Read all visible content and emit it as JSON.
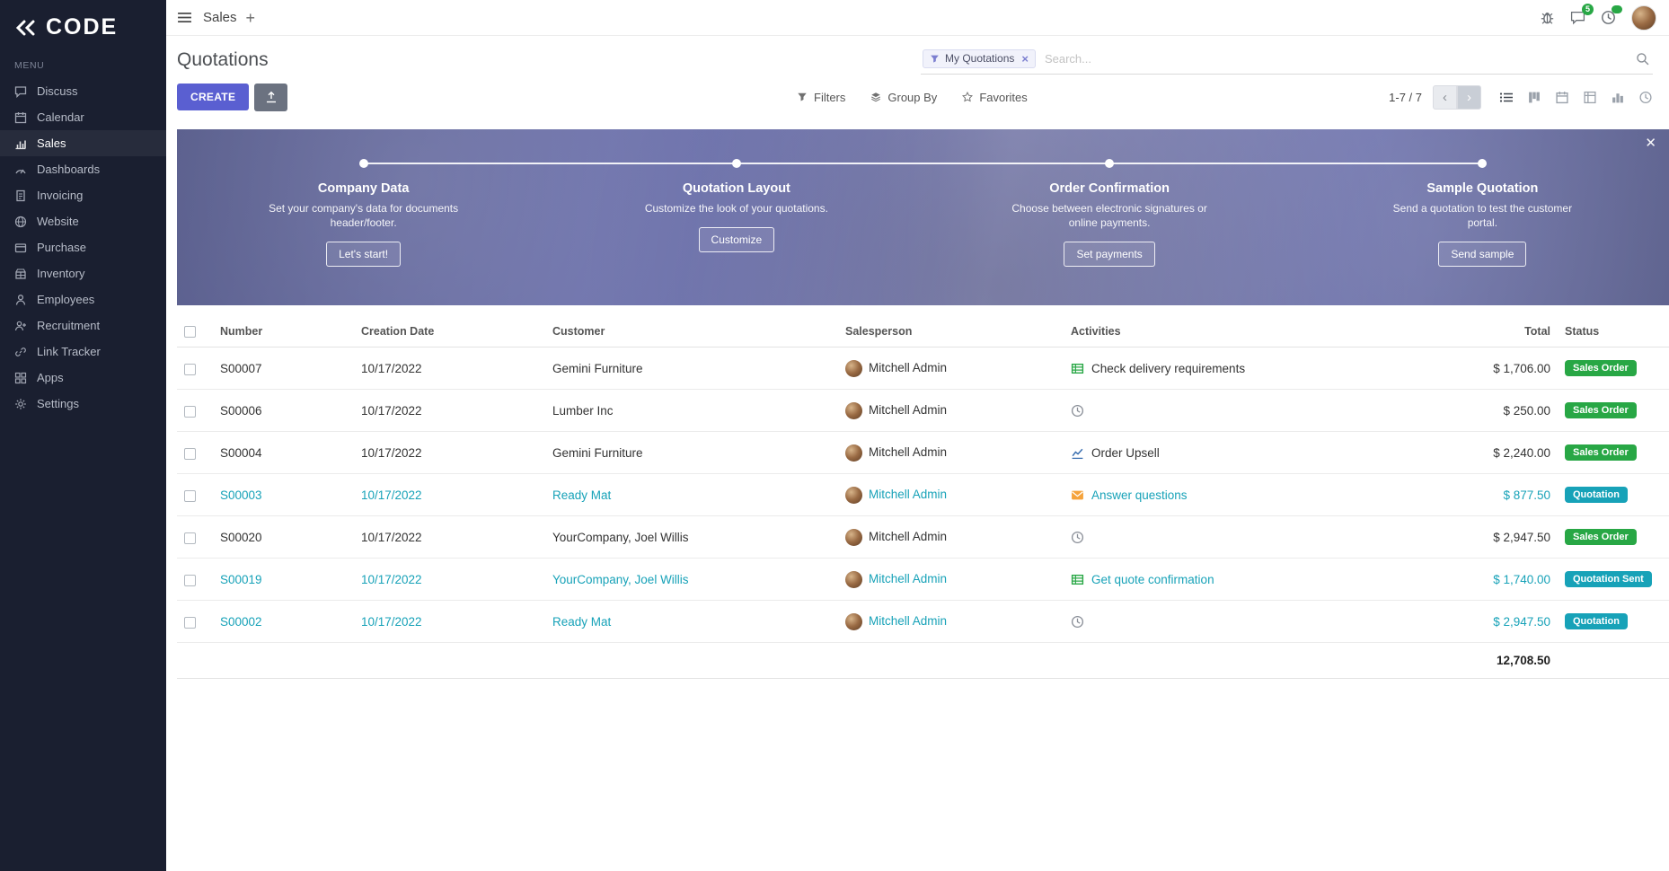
{
  "brand": {
    "name": "CODE"
  },
  "topbar": {
    "app_name": "Sales",
    "message_count": "5"
  },
  "sidebar": {
    "menu_label": "MENU",
    "items": [
      {
        "label": "Discuss",
        "icon": "discuss"
      },
      {
        "label": "Calendar",
        "icon": "calendar"
      },
      {
        "label": "Sales",
        "icon": "sales",
        "active": true
      },
      {
        "label": "Dashboards",
        "icon": "dashboards"
      },
      {
        "label": "Invoicing",
        "icon": "invoicing"
      },
      {
        "label": "Website",
        "icon": "website"
      },
      {
        "label": "Purchase",
        "icon": "purchase"
      },
      {
        "label": "Inventory",
        "icon": "inventory"
      },
      {
        "label": "Employees",
        "icon": "employees"
      },
      {
        "label": "Recruitment",
        "icon": "recruitment"
      },
      {
        "label": "Link Tracker",
        "icon": "link"
      },
      {
        "label": "Apps",
        "icon": "apps"
      },
      {
        "label": "Settings",
        "icon": "settings"
      }
    ]
  },
  "control_panel": {
    "title": "Quotations",
    "search": {
      "facet": "My Quotations",
      "placeholder": "Search..."
    },
    "create_label": "CREATE",
    "filters_label": "Filters",
    "group_by_label": "Group By",
    "favorites_label": "Favorites",
    "pager": "1-7 / 7"
  },
  "banner": {
    "steps": [
      {
        "title": "Company Data",
        "desc": "Set your company's data for documents header/footer.",
        "button": "Let's start!"
      },
      {
        "title": "Quotation Layout",
        "desc": "Customize the look of your quotations.",
        "button": "Customize"
      },
      {
        "title": "Order Confirmation",
        "desc": "Choose between electronic signatures or online payments.",
        "button": "Set payments"
      },
      {
        "title": "Sample Quotation",
        "desc": "Send a quotation to test the customer portal.",
        "button": "Send sample"
      }
    ]
  },
  "table": {
    "columns": [
      "Number",
      "Creation Date",
      "Customer",
      "Salesperson",
      "Activities",
      "Total",
      "Status"
    ],
    "rows": [
      {
        "number": "S00007",
        "date": "10/17/2022",
        "customer": "Gemini Furniture",
        "salesperson": "Mitchell Admin",
        "activity": "Check delivery requirements",
        "activity_icon": "list",
        "total": "$ 1,706.00",
        "status": "Sales Order",
        "state": "sale"
      },
      {
        "number": "S00006",
        "date": "10/17/2022",
        "customer": "Lumber Inc",
        "salesperson": "Mitchell Admin",
        "activity": "",
        "activity_icon": "clock",
        "total": "$ 250.00",
        "status": "Sales Order",
        "state": "sale"
      },
      {
        "number": "S00004",
        "date": "10/17/2022",
        "customer": "Gemini Furniture",
        "salesperson": "Mitchell Admin",
        "activity": "Order Upsell",
        "activity_icon": "chart",
        "total": "$ 2,240.00",
        "status": "Sales Order",
        "state": "sale"
      },
      {
        "number": "S00003",
        "date": "10/17/2022",
        "customer": "Ready Mat",
        "salesperson": "Mitchell Admin",
        "activity": "Answer questions",
        "activity_icon": "envelope",
        "total": "$ 877.50",
        "status": "Quotation",
        "state": "draft"
      },
      {
        "number": "S00020",
        "date": "10/17/2022",
        "customer": "YourCompany, Joel Willis",
        "salesperson": "Mitchell Admin",
        "activity": "",
        "activity_icon": "clock",
        "total": "$ 2,947.50",
        "status": "Sales Order",
        "state": "sale"
      },
      {
        "number": "S00019",
        "date": "10/17/2022",
        "customer": "YourCompany, Joel Willis",
        "salesperson": "Mitchell Admin",
        "activity": "Get quote confirmation",
        "activity_icon": "list",
        "total": "$ 1,740.00",
        "status": "Quotation Sent",
        "state": "sent"
      },
      {
        "number": "S00002",
        "date": "10/17/2022",
        "customer": "Ready Mat",
        "salesperson": "Mitchell Admin",
        "activity": "",
        "activity_icon": "clock",
        "total": "$ 2,947.50",
        "status": "Quotation",
        "state": "draft"
      }
    ],
    "footer_total": "12,708.50"
  },
  "colors": {
    "primary": "#5a5fd1",
    "success": "#28a745",
    "info": "#17a2b8",
    "sidebar_bg": "#1a1f30"
  }
}
